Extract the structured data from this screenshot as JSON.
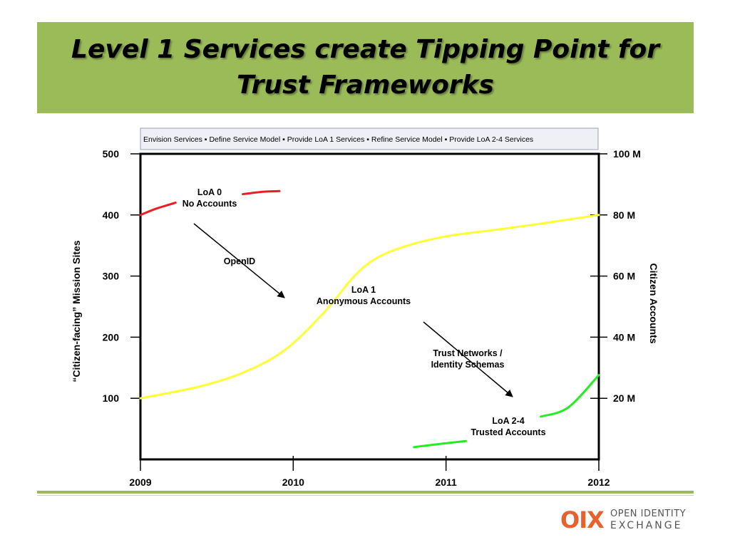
{
  "slide": {
    "title": "Level 1 Services create Tipping Point for Trust Frameworks"
  },
  "logo": {
    "mark": "OIX",
    "line1": "OPEN IDENTITY",
    "line2": "EXCHANGE",
    "color": "#e8612c"
  },
  "colors": {
    "title_band": "#9bbb59",
    "loa0": "#ee1c24",
    "loa1": "#ffff33",
    "loa24": "#22ee22"
  },
  "chart_data": {
    "type": "line",
    "phases_banner": [
      "Envision Services",
      "Define Service Model",
      "Provide  LoA 1 Services",
      "Refine Service Model",
      "Provide LoA 2-4 Services"
    ],
    "x_ticks": [
      "2009",
      "2010",
      "2011",
      "2012"
    ],
    "xlim": [
      2009,
      2012
    ],
    "y_left": {
      "label": "“Citizen-facing” Mission Sites",
      "ticks": [
        "100",
        "200",
        "300",
        "400",
        "500"
      ],
      "ylim": [
        0,
        500
      ]
    },
    "y_right": {
      "label": "Citizen Accounts",
      "ticks": [
        "20 M",
        "40 M",
        "60 M",
        "80 M",
        "100 M"
      ],
      "ylim": [
        0,
        100
      ]
    },
    "grid": false,
    "series": [
      {
        "key": "loa0",
        "color": "#ee1c24",
        "segments": [
          [
            [
              2009.0,
              400
            ],
            [
              2009.1,
              410
            ],
            [
              2009.23,
              420
            ]
          ],
          [
            [
              2009.67,
              434
            ],
            [
              2009.8,
              438
            ],
            [
              2009.91,
              439
            ]
          ]
        ]
      },
      {
        "key": "loa1",
        "color": "#ffff33",
        "segments": [
          [
            [
              2009.0,
              100
            ],
            [
              2009.4,
              120
            ],
            [
              2009.7,
              145
            ],
            [
              2009.95,
              180
            ],
            [
              2010.2,
              240
            ],
            [
              2010.4,
              300
            ],
            [
              2010.55,
              330
            ],
            [
              2010.75,
              350
            ],
            [
              2011.0,
              365
            ],
            [
              2011.3,
              375
            ],
            [
              2011.6,
              385
            ],
            [
              2012.0,
              400
            ]
          ]
        ]
      },
      {
        "key": "loa24",
        "color": "#22ee22",
        "segments": [
          [
            [
              2010.79,
              20
            ],
            [
              2010.95,
              25
            ],
            [
              2011.13,
              30
            ]
          ],
          [
            [
              2011.62,
              70
            ],
            [
              2011.8,
              85
            ],
            [
              2012.0,
              138
            ]
          ]
        ]
      }
    ],
    "annotations": [
      {
        "key": "loa0_label",
        "lines": [
          "LoA 0",
          "No Accounts"
        ]
      },
      {
        "key": "openid",
        "lines": [
          "OpenID"
        ]
      },
      {
        "key": "loa1_label",
        "lines": [
          "LoA 1",
          "Anonymous Accounts"
        ]
      },
      {
        "key": "trust_networks",
        "lines": [
          "Trust Networks /",
          "Identity Schemas"
        ]
      },
      {
        "key": "loa24_label",
        "lines": [
          "LoA 2-4",
          "Trusted Accounts"
        ]
      }
    ]
  }
}
